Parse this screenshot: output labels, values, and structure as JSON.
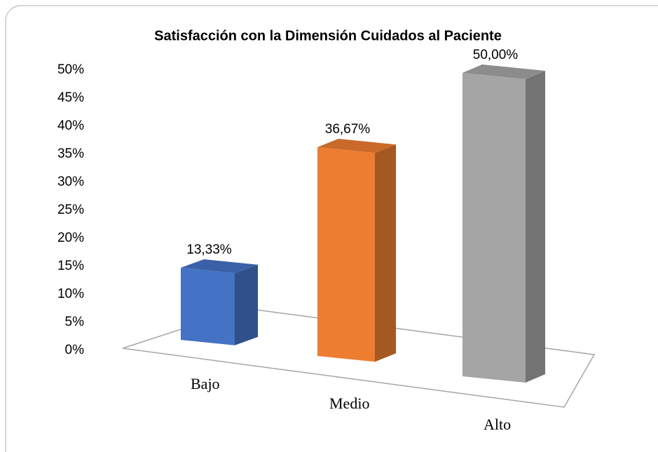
{
  "chart_data": {
    "type": "bar3d",
    "title": "Satisfacción con la Dimensión Cuidados al Paciente",
    "categories": [
      "Bajo",
      "Medio",
      "Alto"
    ],
    "values": [
      13.33,
      36.67,
      50
    ],
    "value_labels": [
      "13,33%",
      "36,67%",
      "50,00%"
    ],
    "colors": [
      "#4472c4",
      "#ed7d31",
      "#a5a5a5"
    ],
    "ylim": [
      0,
      50
    ],
    "yticks": [
      {
        "value": 0,
        "label": "0%"
      },
      {
        "value": 5,
        "label": "5%"
      },
      {
        "value": 10,
        "label": "10%"
      },
      {
        "value": 15,
        "label": "15%"
      },
      {
        "value": 20,
        "label": "20%"
      },
      {
        "value": 25,
        "label": "25%"
      },
      {
        "value": 30,
        "label": "30%"
      },
      {
        "value": 35,
        "label": "35%"
      },
      {
        "value": 40,
        "label": "40%"
      },
      {
        "value": 45,
        "label": "45%"
      },
      {
        "value": 50,
        "label": "50%"
      }
    ]
  }
}
